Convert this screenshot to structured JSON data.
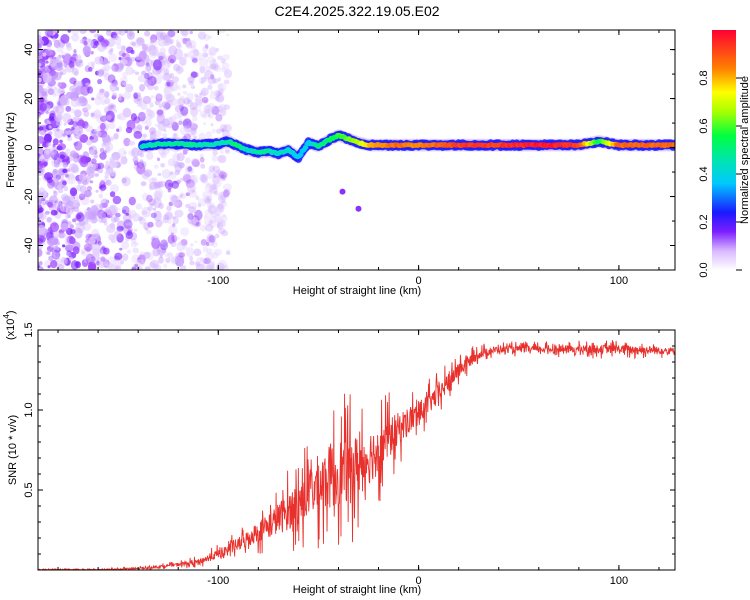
{
  "figure_title": "C2E4.2025.322.19.05.E02",
  "chart_data": [
    {
      "type": "heatmap",
      "title": "",
      "xlabel": "Height of straight line (km)",
      "ylabel": "Frequency (Hz)",
      "xlim": [
        -190,
        128
      ],
      "ylim": [
        -50,
        48
      ],
      "xticks": [
        -100,
        0,
        100
      ],
      "yticks": [
        -40,
        -20,
        0,
        20,
        40
      ],
      "colorbar": {
        "label": "Normalized spectral amplitude",
        "range": [
          0,
          1
        ],
        "ticks": [
          0.0,
          0.2,
          0.4,
          0.6,
          0.8
        ]
      },
      "ridge": {
        "description": "frequency ridge (Hz) vs height (km)",
        "x": [
          -138,
          -130,
          -120,
          -110,
          -100,
          -95,
          -90,
          -85,
          -80,
          -75,
          -70,
          -65,
          -60,
          -55,
          -50,
          -45,
          -40,
          -35,
          -30,
          -25,
          -20,
          -10,
          0,
          20,
          40,
          60,
          80,
          90,
          100,
          128
        ],
        "y": [
          0.5,
          1.5,
          1.5,
          1,
          1.5,
          2.5,
          0.5,
          -1,
          -2,
          -1.5,
          -2.5,
          -1,
          -4,
          2,
          0.5,
          3,
          5,
          3.5,
          2,
          1,
          1,
          1,
          1,
          1,
          1,
          1,
          1,
          2.5,
          1,
          1
        ],
        "amplitude": [
          0.45,
          0.5,
          0.5,
          0.5,
          0.45,
          0.5,
          0.55,
          0.45,
          0.5,
          0.5,
          0.45,
          0.45,
          0.4,
          0.4,
          0.5,
          0.55,
          0.6,
          0.65,
          0.7,
          0.8,
          0.85,
          0.9,
          0.85,
          0.95,
          0.95,
          1.0,
          0.95,
          0.55,
          0.9,
          0.9
        ]
      },
      "isolated_points": [
        {
          "x": -38,
          "y": -18,
          "amplitude": 0.15
        },
        {
          "x": -30,
          "y": -25,
          "amplitude": 0.15
        }
      ],
      "noise_region": {
        "x_from": -190,
        "x_to": -95,
        "y_from": -50,
        "y_to": 48
      }
    },
    {
      "type": "line",
      "title": "",
      "xlabel": "Height of straight line (km)",
      "ylabel": "SNR (10 * v/v)",
      "y_scale_label": "(x10",
      "y_scale_exponent": "4",
      "xlim": [
        -190,
        128
      ],
      "ylim": [
        0,
        15000
      ],
      "xticks": [
        -100,
        0,
        100
      ],
      "yticks": [
        5000,
        10000,
        15000
      ],
      "ytick_labels": [
        "0.5",
        "1.0",
        "1.5"
      ],
      "color": "#e8312c",
      "series": [
        {
          "name": "SNR",
          "x": [
            -190,
            -160,
            -140,
            -130,
            -120,
            -110,
            -100,
            -90,
            -80,
            -70,
            -60,
            -50,
            -40,
            -35,
            -30,
            -20,
            -10,
            0,
            10,
            20,
            30,
            40,
            60,
            80,
            100,
            128
          ],
          "y": [
            0,
            0,
            100,
            200,
            350,
            500,
            1000,
            1600,
            2400,
            3200,
            4200,
            5400,
            6100,
            6300,
            6500,
            7600,
            8800,
            9800,
            11000,
            12500,
            13500,
            13800,
            13800,
            13800,
            13800,
            13700
          ],
          "noise_amplitude": [
            50,
            50,
            80,
            100,
            150,
            250,
            400,
            600,
            900,
            1400,
            2000,
            2600,
            3000,
            3000,
            2800,
            2200,
            1500,
            1000,
            900,
            700,
            400,
            300,
            300,
            350,
            400,
            300
          ]
        }
      ]
    }
  ]
}
